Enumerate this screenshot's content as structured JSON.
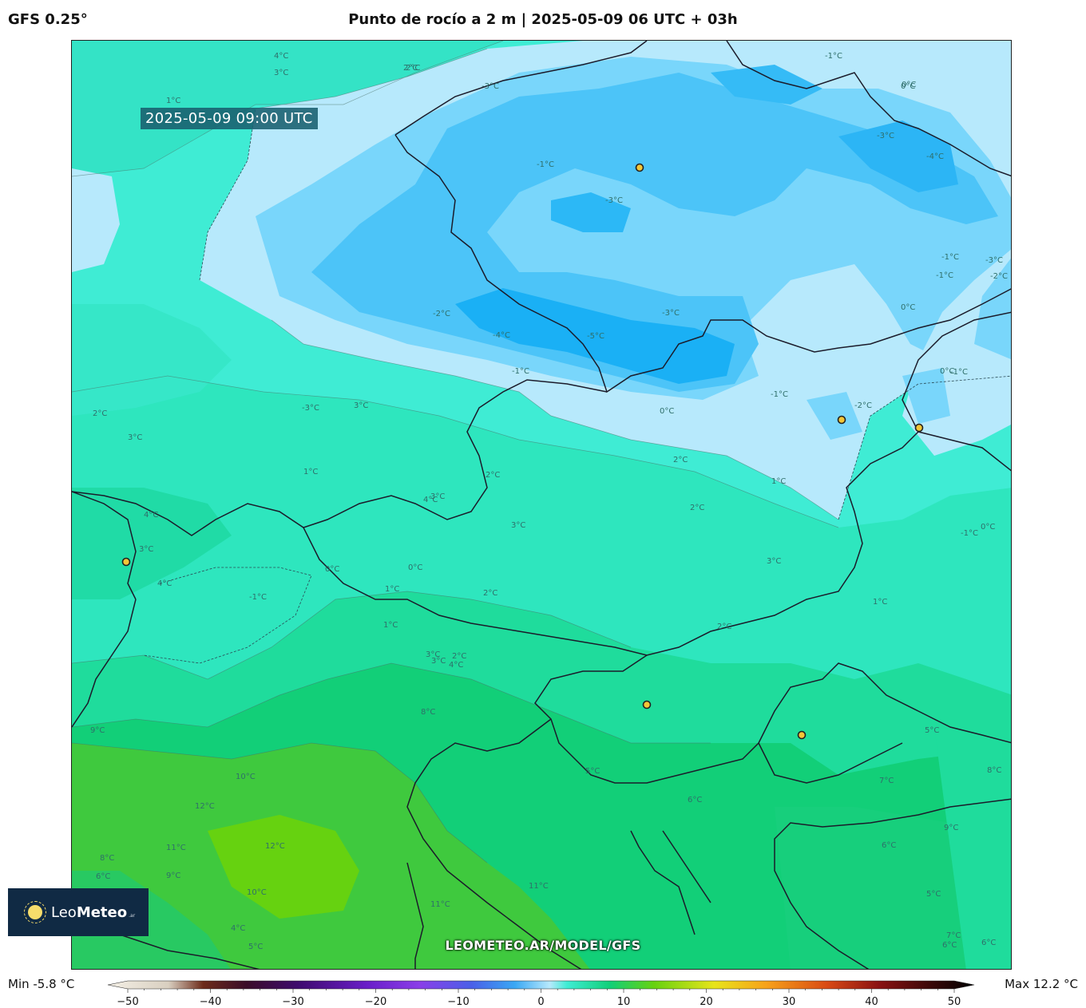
{
  "header": {
    "model": "GFS 0.25°",
    "title": "Punto de rocío a 2 m | 2025-05-09 06 UTC + 03h"
  },
  "map": {
    "valid_time": "2025-05-09 09:00 UTC",
    "watermark": "LEOMETEO.AR/MODEL/GFS",
    "contour_labels": [
      "2°C",
      "4°C",
      "3°C",
      "2°C",
      "1°C",
      "-3°C",
      "-1°C",
      "-3°C",
      "-3°C",
      "-4°C",
      "0°C",
      "-1°C",
      "0°C",
      "-2°C",
      "-3°C",
      "-4°C",
      "-5°C",
      "-1°C",
      "-2°C",
      "-3°C",
      "-1°C",
      "-1°C",
      "0°C",
      "0°C",
      "-1°C",
      "0°C",
      "-2°C",
      "-1°C",
      "2°C",
      "3°C",
      "-3°C",
      "3°C",
      "4°C",
      "2°C",
      "1°C",
      "2°C",
      "3°C",
      "4°C",
      "3°C",
      "2°C",
      "1°C",
      "4°C",
      "3°C",
      "3°C",
      "0°C",
      "0°C",
      "-1°C",
      "1°C",
      "2°C",
      "0°C",
      "1°C",
      "-1°C",
      "3°C",
      "2°C",
      "1°C",
      "2°C",
      "2°C",
      "3°C",
      "4°C",
      "8°C",
      "9°C",
      "10°C",
      "12°C",
      "12°C",
      "11°C",
      "9°C",
      "10°C",
      "11°C",
      "11°C",
      "5°C",
      "6°C",
      "7°C",
      "8°C",
      "9°C",
      "6°C",
      "5°C",
      "5°C",
      "6°C",
      "6°C",
      "7°C",
      "4°C",
      "5°C",
      "6°C",
      "8°C"
    ]
  },
  "logo": {
    "brand_light": "Leo",
    "brand_bold": "Meteo",
    "suffix": ".ar"
  },
  "legend": {
    "min_label": "Min -5.8 °C",
    "max_label": "Max 12.2 °C",
    "ticks": [
      "−50",
      "−40",
      "−30",
      "−20",
      "−10",
      "0",
      "10",
      "20",
      "30",
      "40",
      "50"
    ],
    "range": [
      -50,
      50
    ]
  },
  "colors": {
    "deep_blue": "#1aa6f2",
    "mid_blue": "#4cc4f8",
    "light_blue": "#79d6fb",
    "pale_blue": "#b7e9fc",
    "cyan": "#3ff0da",
    "teal": "#2ee8c4",
    "sea_green": "#1fdc9c",
    "green": "#10cc74",
    "lime": "#3fc83a",
    "yellow_green": "#66d210",
    "border": "#1b1b2a"
  }
}
